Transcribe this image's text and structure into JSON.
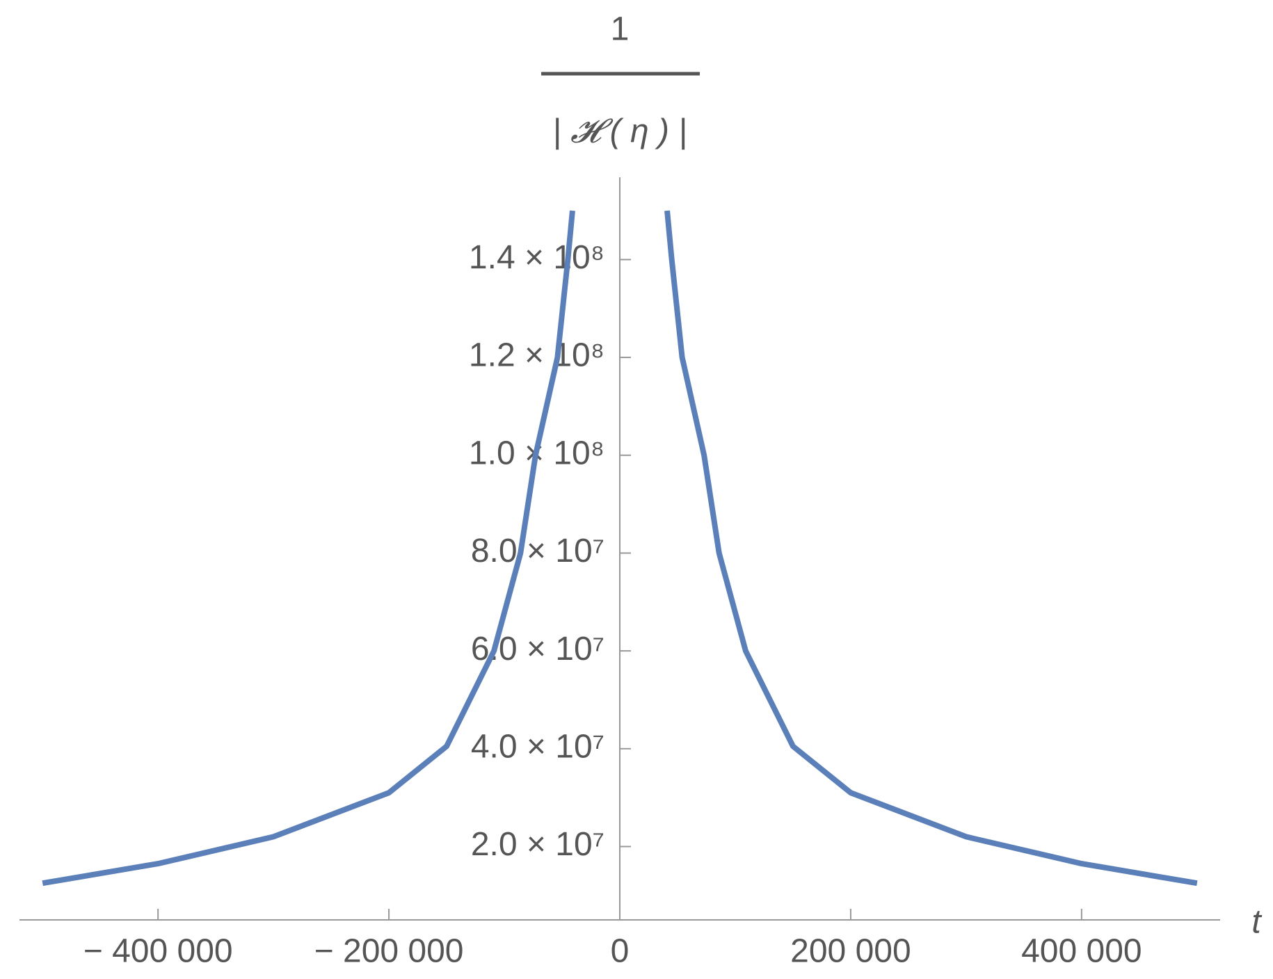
{
  "chart_data": {
    "type": "line",
    "ylabel_numerator": "1",
    "ylabel_denominator": "| 𝓗 ( η ) |",
    "xlabel": "t",
    "x": [
      -500000,
      -400000,
      -300000,
      -200000,
      -150000,
      -109000,
      -86000,
      -73000,
      -54000,
      -45000,
      -41000,
      0,
      41000,
      45000,
      54000,
      73000,
      86000,
      109000,
      150000,
      200000,
      300000,
      400000,
      500000
    ],
    "series": [
      {
        "color": "#5b7fb8",
        "values": [
          12500000,
          16500000,
          22000000,
          31000000,
          40500000,
          60000000,
          80000000,
          100000000,
          120000000,
          140000000,
          150000000,
          null,
          150000000,
          140000000,
          120000000,
          100000000,
          80000000,
          60000000,
          40500000,
          31000000,
          22000000,
          16500000,
          12500000
        ]
      }
    ],
    "xlim": [
      -520000,
      520000
    ],
    "ylim": [
      5000000,
      150000000
    ],
    "xticks": [
      {
        "value": -400000,
        "label": "− 400 000"
      },
      {
        "value": -200000,
        "label": "− 200 000"
      },
      0,
      {
        "value": 200000,
        "label": "200 000"
      },
      {
        "value": 400000,
        "label": "400 000"
      }
    ],
    "yticks": [
      {
        "value": 20000000,
        "label": "2.0 × 10⁷"
      },
      {
        "value": 40000000,
        "label": "4.0 × 10⁷"
      },
      {
        "value": 60000000,
        "label": "6.0 × 10⁷"
      },
      {
        "value": 80000000,
        "label": "8.0 × 10⁷"
      },
      {
        "value": 100000000,
        "label": "1.0 × 10⁸"
      },
      {
        "value": 120000000,
        "label": "1.2 × 10⁸"
      },
      {
        "value": 140000000,
        "label": "1.4 × 10⁸"
      }
    ]
  }
}
